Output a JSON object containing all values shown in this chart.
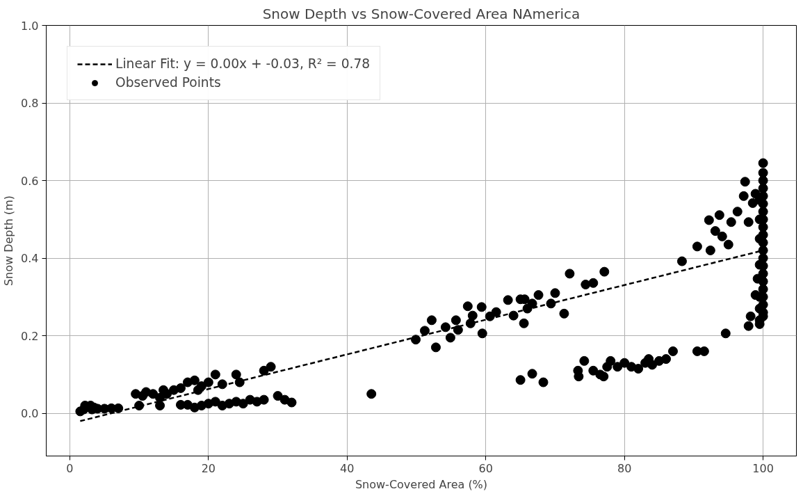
{
  "chart_data": {
    "type": "scatter",
    "title": "Snow Depth vs Snow-Covered Area NAmerica",
    "xlabel": "Snow-Covered Area (%)",
    "ylabel": "Snow Depth (m)",
    "xlim": [
      -3.4,
      104.8
    ],
    "ylim": [
      -0.11,
      1.0
    ],
    "xticks": [
      0,
      20,
      40,
      60,
      80,
      100
    ],
    "yticks": [
      {
        "value": 0,
        "label": "0.0"
      },
      0.2,
      0.4,
      0.6,
      0.8,
      {
        "value": 1,
        "label": "1.0"
      }
    ],
    "grid": true,
    "legend": "top left",
    "series": [
      {
        "name": "Linear Fit: y = 0.00x + -0.03, R² = 0.78",
        "type": "line",
        "line_style": "dashed",
        "color": "#000000",
        "x": [
          1.5,
          100
        ],
        "values": [
          -0.02,
          0.42
        ]
      },
      {
        "name": "Observed Points",
        "marker": "circle",
        "color": "#000000",
        "x": [
          1.5,
          2,
          3,
          3.5,
          4,
          5,
          6,
          7,
          2.2,
          3.2,
          9.5,
          10,
          10.5,
          11,
          12,
          13,
          13.5,
          14,
          15,
          16,
          17,
          18,
          18.5,
          19,
          20,
          21,
          22,
          24,
          24.5,
          28,
          29,
          13,
          16,
          17,
          18,
          19,
          20,
          21,
          22,
          23,
          24,
          25,
          26,
          27,
          28,
          30,
          31,
          32,
          43.5,
          49.9,
          51.2,
          52.2,
          52.8,
          54.2,
          54.9,
          55.7,
          56,
          57.4,
          57.8,
          58.1,
          59.4,
          59.5,
          60.6,
          61.5,
          63.2,
          64,
          65,
          65.5,
          65.6,
          66,
          66.7,
          67.6,
          69.4,
          70,
          71.3,
          72.1,
          74.4,
          65,
          66.7,
          68.3,
          73.3,
          73.4,
          74.2,
          75.5,
          77.1,
          75.5,
          76.5,
          77,
          77.5,
          78,
          79,
          80,
          81,
          82,
          83,
          83.5,
          84,
          85,
          86,
          87,
          90.5,
          91.5,
          94.6,
          88.3,
          90.5,
          92.4,
          92.2,
          93.7,
          93.1,
          94.1,
          95,
          95.4,
          96.3,
          97.2,
          97.4,
          97.9,
          98.5,
          98.9,
          98.2,
          97.9,
          98.9,
          99.2,
          99.5,
          100,
          100,
          100,
          100,
          100,
          100,
          100,
          100,
          100,
          100,
          100,
          100,
          100,
          100,
          100,
          100,
          100,
          100,
          100,
          100,
          100,
          99.5,
          99.5,
          99.5,
          99.5,
          99.5,
          99.5,
          99.5
        ],
        "values": [
          0.005,
          0.01,
          0.02,
          0.015,
          0.012,
          0.012,
          0.013,
          0.013,
          0.02,
          0.01,
          0.05,
          0.02,
          0.045,
          0.055,
          0.05,
          0.04,
          0.06,
          0.05,
          0.06,
          0.065,
          0.08,
          0.085,
          0.06,
          0.07,
          0.08,
          0.1,
          0.075,
          0.1,
          0.08,
          0.11,
          0.12,
          0.02,
          0.022,
          0.022,
          0.015,
          0.02,
          0.025,
          0.03,
          0.02,
          0.025,
          0.03,
          0.025,
          0.035,
          0.03,
          0.035,
          0.045,
          0.035,
          0.028,
          0.05,
          0.19,
          0.213,
          0.24,
          0.17,
          0.222,
          0.195,
          0.24,
          0.215,
          0.276,
          0.232,
          0.252,
          0.274,
          0.206,
          0.25,
          0.261,
          0.292,
          0.252,
          0.294,
          0.232,
          0.294,
          0.27,
          0.283,
          0.305,
          0.283,
          0.31,
          0.257,
          0.36,
          0.332,
          0.086,
          0.102,
          0.08,
          0.11,
          0.095,
          0.135,
          0.336,
          0.365,
          0.11,
          0.1,
          0.095,
          0.12,
          0.135,
          0.12,
          0.13,
          0.12,
          0.115,
          0.13,
          0.14,
          0.125,
          0.135,
          0.14,
          0.16,
          0.16,
          0.16,
          0.206,
          0.392,
          0.43,
          0.42,
          0.498,
          0.511,
          0.47,
          0.456,
          0.435,
          0.493,
          0.52,
          0.56,
          0.597,
          0.493,
          0.542,
          0.566,
          0.25,
          0.225,
          0.305,
          0.347,
          0.383,
          0.645,
          0.62,
          0.6,
          0.58,
          0.56,
          0.54,
          0.52,
          0.5,
          0.48,
          0.46,
          0.44,
          0.42,
          0.4,
          0.38,
          0.36,
          0.34,
          0.32,
          0.3,
          0.28,
          0.26,
          0.25,
          0.23,
          0.24,
          0.27,
          0.3,
          0.55,
          0.5,
          0.45
        ]
      }
    ]
  }
}
